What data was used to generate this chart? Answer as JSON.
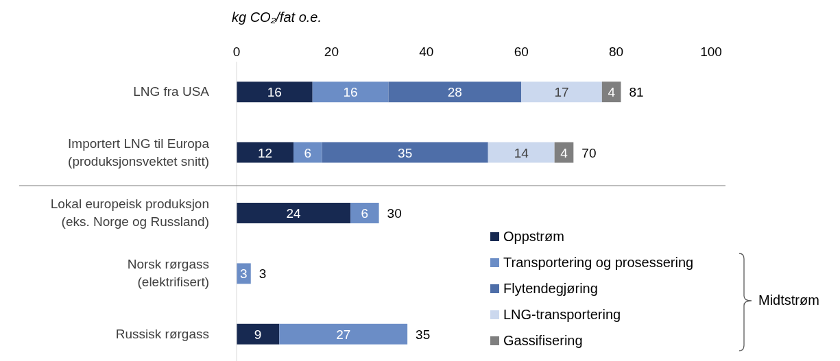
{
  "chart_data": {
    "type": "bar",
    "orientation": "horizontal",
    "stacked": true,
    "xlabel": "kg CO₂/fat o.e.",
    "categories": [
      "LNG fra USA",
      "Importert LNG til Europa\n(produksjonsvektet snitt)",
      "Lokal europeisk produksjon\n(eks. Norge og Russland)",
      "Norsk rørgass\n(elektrifisert)",
      "Russisk rørgass"
    ],
    "series": [
      {
        "name": "Oppstrøm",
        "color": "#172951",
        "values": [
          16,
          12,
          24,
          null,
          9
        ]
      },
      {
        "name": "Transportering og prosessering",
        "color": "#6b8dc6",
        "values": [
          16,
          6,
          6,
          3,
          27
        ]
      },
      {
        "name": "Flytendegjøring",
        "color": "#4e6ea8",
        "values": [
          28,
          35,
          null,
          null,
          null
        ]
      },
      {
        "name": "LNG-transportering",
        "color": "#cbd8ee",
        "values": [
          17,
          14,
          null,
          null,
          null
        ]
      },
      {
        "name": "Gassifisering",
        "color": "#7f7f7f",
        "values": [
          4,
          4,
          null,
          null,
          null
        ]
      }
    ],
    "xlim": [
      0,
      100
    ],
    "xticks": [
      0,
      20,
      40,
      60,
      80,
      100
    ],
    "legend": "bottom right",
    "data_labels": true,
    "totals": [
      "81",
      "70",
      "30",
      "3",
      "35"
    ],
    "annotations": [
      "Midtstrøm"
    ]
  }
}
